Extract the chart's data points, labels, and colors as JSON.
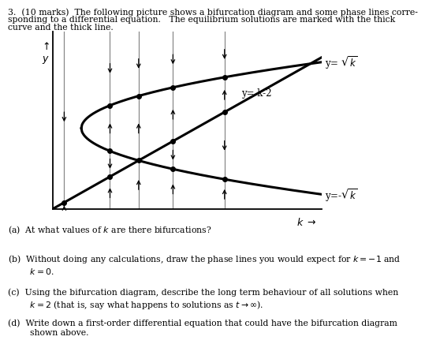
{
  "k_min": -0.5,
  "k_max": 4.2,
  "y_min": -2.5,
  "y_max": 3.0,
  "phase_line_ks": [
    -0.3,
    0.5,
    1.0,
    1.6,
    2.5
  ],
  "background_color": "#ffffff",
  "label_sqrt_k": "y= $\\sqrt{k}$",
  "label_neg_sqrt_k": "y=-$\\sqrt{k}$",
  "label_line": "y= k-2",
  "text_fontsize": 8.5,
  "axis_label_fontsize": 9,
  "curve_lw": 2.2,
  "phase_lw": 0.9,
  "title_line1": "3.  (10 marks)  The following picture shows a bifurcation diagram and some phase lines corre-",
  "title_line2": "sponding to a differential equation.   The equilibrium solutions are marked with the thick",
  "title_line3": "curve and the thick line.",
  "q_a": "(a)  At what values of $k$ are there bifurcations?",
  "q_b": "(b)  Without doing any calculations, draw the phase lines you would expect for $k=-1$ and\n        $k=0$.",
  "q_c": "(c)  Using the bifurcation diagram, describe the long term behaviour of all solutions when\n        $k=2$ (that is, say what happens to solutions as $t\\to\\infty$).",
  "q_d": "(d)  Write down a first-order differential equation that could have the bifurcation diagram\n        shown above."
}
